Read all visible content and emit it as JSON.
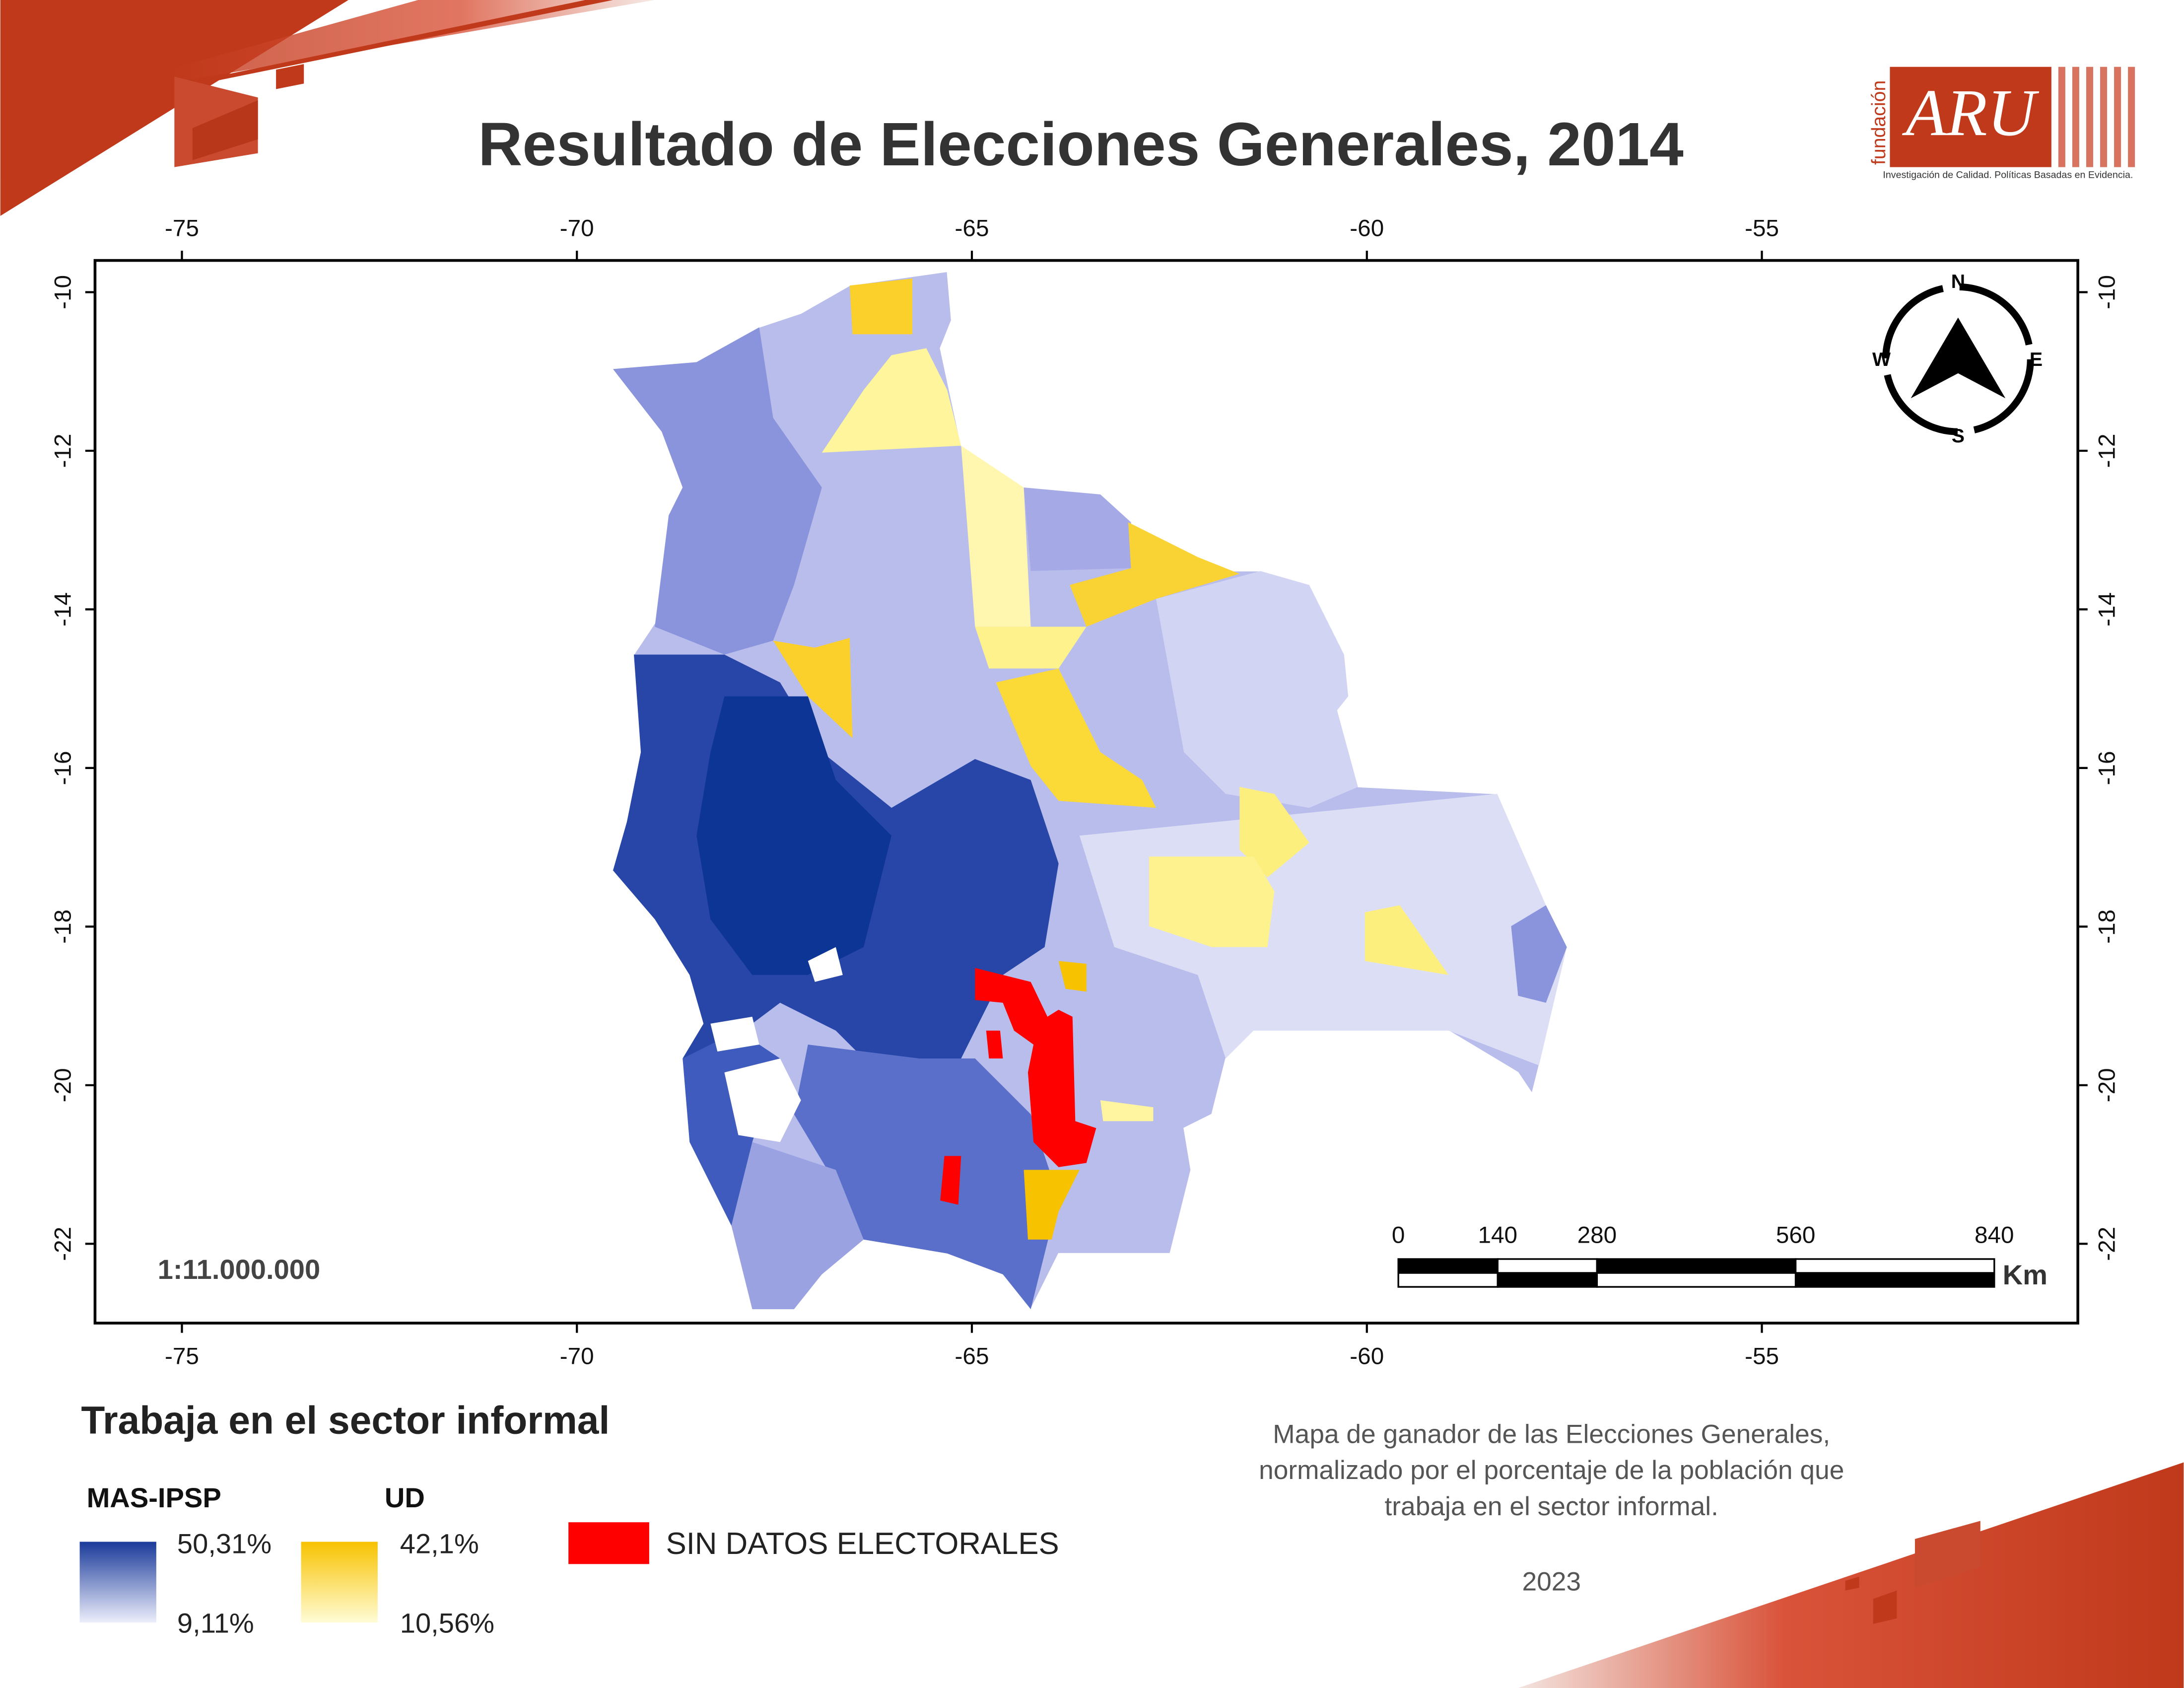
{
  "header": {
    "title": "Resultado de Elecciones Generales, 2014",
    "logo": {
      "prefix": "fundación",
      "brand": "ARU",
      "tagline": "Investigación de Calidad. Políticas Basadas en Evidencia."
    }
  },
  "map": {
    "xlim": [
      -76.1,
      -51.0
    ],
    "ylim": [
      -23.0,
      -9.6
    ],
    "xticks": [
      -75,
      -70,
      -65,
      -60,
      -55
    ],
    "yticks": [
      -10,
      -12,
      -14,
      -16,
      -18,
      -20,
      -22
    ],
    "scale": "1:11.000.000",
    "scale_bar": {
      "ticks": [
        0,
        140,
        280,
        560,
        840
      ],
      "unit": "Km"
    },
    "compass": {
      "north": "N",
      "south": "S",
      "east": "E",
      "west": "W"
    }
  },
  "legend": {
    "title": "Trabaja en el sector informal",
    "groups": [
      {
        "name": "MAS-IPSP",
        "max": "50,31%",
        "min": "9,11%",
        "colors": [
          "#1a3a9a",
          "#eceefb"
        ]
      },
      {
        "name": "UD",
        "max": "42,1%",
        "min": "10,56%",
        "colors": [
          "#f7c200",
          "#fffcd6"
        ]
      }
    ],
    "no_data": {
      "label": "SIN DATOS ELECTORALES",
      "color": "#ff0000"
    }
  },
  "note": {
    "lines": [
      "Mapa de ganador de las Elecciones Generales,",
      "normalizado por el porcentaje de la población que",
      "trabaja en el sector informal."
    ],
    "year": "2023"
  }
}
